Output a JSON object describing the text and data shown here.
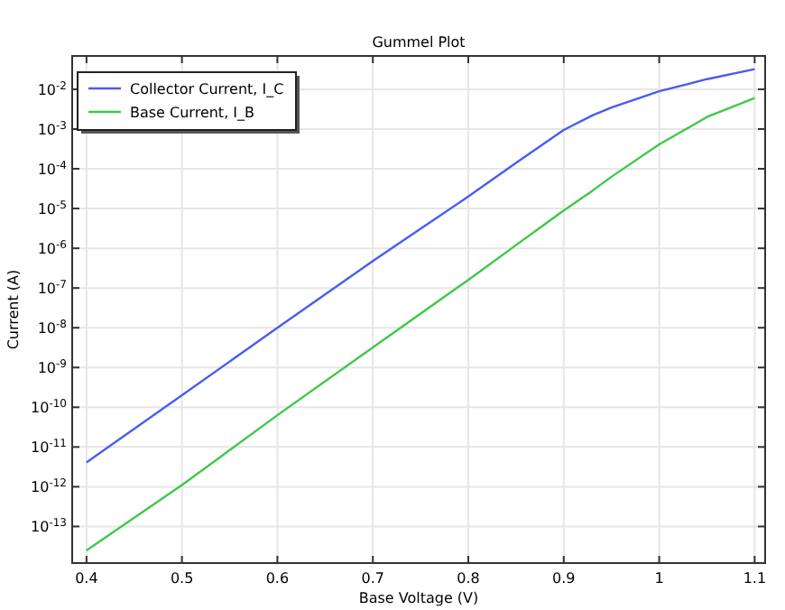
{
  "chart_data": {
    "type": "line",
    "title": "Gummel Plot",
    "xlabel": "Base Voltage (V)",
    "ylabel": "Current (A)",
    "x": [
      0.4,
      0.5,
      0.6,
      0.7,
      0.8,
      0.85,
      0.9,
      0.93,
      0.95,
      1.0,
      1.05,
      1.1
    ],
    "series": [
      {
        "name": "Collector Current, I_C",
        "color": "#4a5cf0",
        "values": [
          4.1e-12,
          2e-10,
          1e-08,
          4.8e-07,
          2e-05,
          0.00014,
          0.00095,
          0.0022,
          0.0035,
          0.0089,
          0.018,
          0.032
        ]
      },
      {
        "name": "Base Current, I_B",
        "color": "#3ec94a",
        "values": [
          2.5e-14,
          1.1e-12,
          6.3e-11,
          3.2e-09,
          1.6e-07,
          1.2e-06,
          8.9e-06,
          2.8e-05,
          6.3e-05,
          0.00041,
          0.002,
          0.006
        ]
      }
    ],
    "log": true,
    "xlim": [
      0.385,
      1.111
    ],
    "ylim": [
      1.2e-14,
      0.069
    ],
    "xticks": [
      0.4,
      0.5,
      0.6,
      0.7,
      0.8,
      0.9,
      1,
      1.1
    ],
    "yticks": [
      {
        "value": 1e-13,
        "label": "10$^{-13}$"
      },
      {
        "value": 1e-12,
        "label": "10$^{-12}$"
      },
      {
        "value": 1e-11,
        "label": "10$^{-11}$"
      },
      {
        "value": 1e-10,
        "label": "10$^{-10}$"
      },
      {
        "value": 1e-09,
        "label": "10$^{-9}$"
      },
      {
        "value": 1e-08,
        "label": "10$^{-8}$"
      },
      {
        "value": 1e-07,
        "label": "10$^{-7}$"
      },
      {
        "value": 1e-06,
        "label": "10$^{-6}$"
      },
      {
        "value": 1e-05,
        "label": "10$^{-5}$"
      },
      {
        "value": 0.0001,
        "label": "10$^{-4}$"
      },
      {
        "value": 0.001,
        "label": "10$^{-3}$"
      },
      {
        "value": 0.01,
        "label": "10$^{-2}$"
      }
    ],
    "grid": true,
    "legend": "top left",
    "marker": "none",
    "line_style": "solid"
  }
}
